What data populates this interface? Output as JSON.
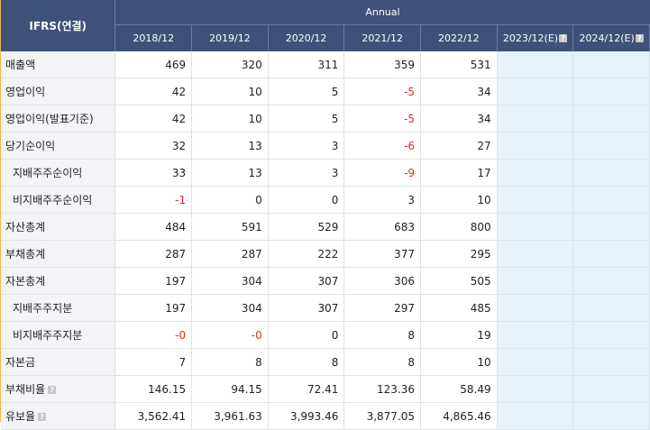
{
  "header": {
    "corner_label": "IFRS(연결)",
    "group_label": "Annual",
    "years": [
      "2018/12",
      "2019/12",
      "2020/12",
      "2021/12",
      "2022/12"
    ],
    "estimate_years": [
      "2023/12(E)",
      "2024/12(E)"
    ],
    "help_icon_glyph": "?"
  },
  "rows": [
    {
      "label": "매출액",
      "indent": false,
      "help": false,
      "values": [
        "469",
        "320",
        "311",
        "359",
        "531"
      ]
    },
    {
      "label": "영업이익",
      "indent": false,
      "help": false,
      "values": [
        "42",
        "10",
        "5",
        "-5",
        "34"
      ]
    },
    {
      "label": "영업이익(발표기준)",
      "indent": false,
      "help": false,
      "values": [
        "42",
        "10",
        "5",
        "-5",
        "34"
      ]
    },
    {
      "label": "당기순이익",
      "indent": false,
      "help": false,
      "values": [
        "32",
        "13",
        "3",
        "-6",
        "27"
      ]
    },
    {
      "label": "지배주주순이익",
      "indent": true,
      "help": false,
      "values": [
        "33",
        "13",
        "3",
        "-9",
        "17"
      ]
    },
    {
      "label": "비지배주주순이익",
      "indent": true,
      "help": false,
      "values": [
        "-1",
        "0",
        "0",
        "3",
        "10"
      ]
    },
    {
      "label": "자산총계",
      "indent": false,
      "help": false,
      "values": [
        "484",
        "591",
        "529",
        "683",
        "800"
      ]
    },
    {
      "label": "부채총계",
      "indent": false,
      "help": false,
      "values": [
        "287",
        "287",
        "222",
        "377",
        "295"
      ]
    },
    {
      "label": "자본총계",
      "indent": false,
      "help": false,
      "values": [
        "197",
        "304",
        "307",
        "306",
        "505"
      ]
    },
    {
      "label": "지배주주지분",
      "indent": true,
      "help": false,
      "values": [
        "197",
        "304",
        "307",
        "297",
        "485"
      ]
    },
    {
      "label": "비지배주주지분",
      "indent": true,
      "help": false,
      "values": [
        "-0",
        "-0",
        "0",
        "8",
        "19"
      ]
    },
    {
      "label": "자본금",
      "indent": false,
      "help": false,
      "values": [
        "7",
        "8",
        "8",
        "8",
        "10"
      ]
    },
    {
      "label": "부채비율",
      "indent": false,
      "help": true,
      "values": [
        "146.15",
        "94.15",
        "72.41",
        "123.36",
        "58.49"
      ]
    },
    {
      "label": "유보율",
      "indent": false,
      "help": true,
      "values": [
        "3,562.41",
        "3,961.63",
        "3,993.46",
        "3,877.05",
        "4,865.46"
      ]
    }
  ],
  "colors": {
    "header_bg": "#3f5079",
    "label_bg": "#f2f4f8",
    "estimate_bg": "#e6f3fa",
    "negative": "#e52b2b",
    "frame_border": "#f2b84a"
  }
}
